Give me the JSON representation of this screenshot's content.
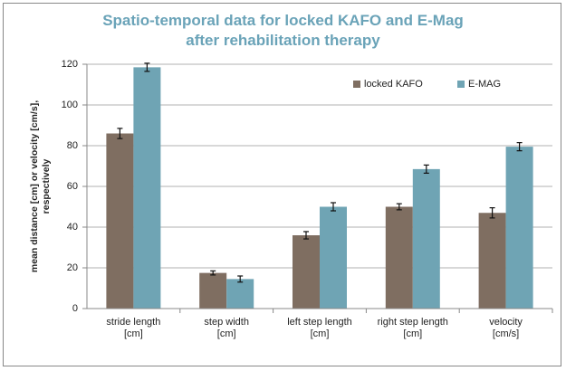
{
  "chart_data": {
    "type": "bar",
    "title": "Spatio-temporal data for locked KAFO and E-Mag\nafter rehabilitation therapy",
    "y_label": "mean distance [cm] or velocity [cm/s],\nrespectively",
    "categories": [
      "stride length\n[cm]",
      "step width\n[cm]",
      "left step length\n[cm]",
      "right step length\n[cm]",
      "velocity\n[cm/s]"
    ],
    "series": [
      {
        "name": "locked KAFO",
        "color": "#7f6e61",
        "values": [
          86,
          17.5,
          36,
          50,
          47
        ],
        "errors": [
          2.5,
          1,
          1.8,
          1.5,
          2.5
        ]
      },
      {
        "name": "E-MAG",
        "color": "#6fa4b4",
        "values": [
          118.5,
          14.5,
          50,
          68.5,
          79.5
        ],
        "errors": [
          2,
          1.5,
          2,
          2,
          2
        ]
      }
    ],
    "ylim": [
      0,
      120
    ],
    "yticks": [
      0,
      20,
      40,
      60,
      80,
      100,
      120
    ],
    "grid": true,
    "legend": "top-right"
  }
}
